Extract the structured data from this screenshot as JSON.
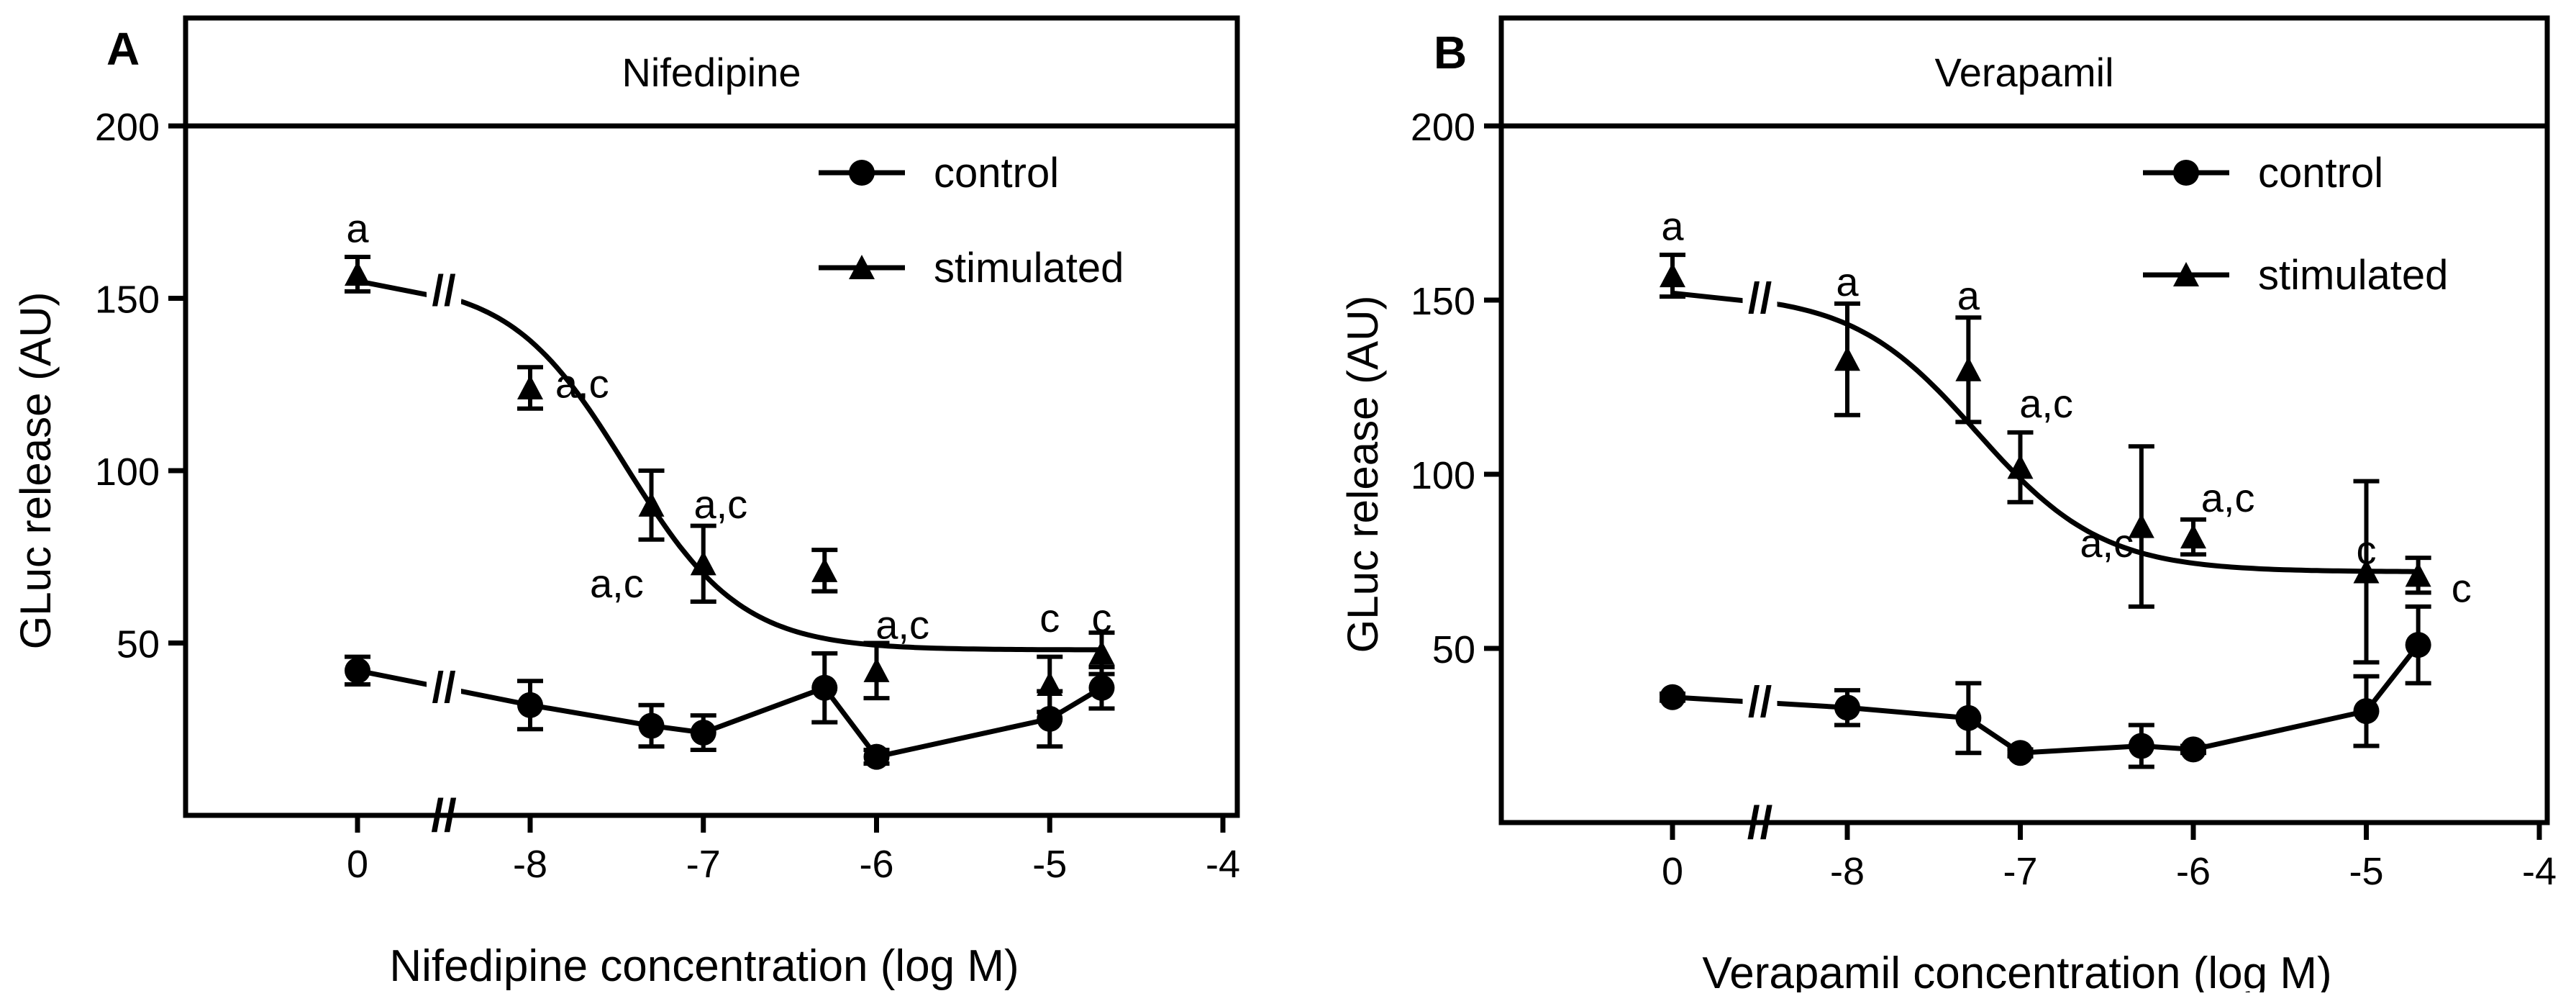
{
  "chart_data": [
    {
      "type": "line",
      "panel_label": "A",
      "header": "Nifedipine",
      "title": "Nifedipine",
      "xlabel": "Nifedipine concentration (log M)",
      "ylabel": "GLuc release (AU)",
      "x_ticks": [
        "0",
        "-8",
        "-7",
        "-6",
        "-5",
        "-4"
      ],
      "x_tick_values": [
        0,
        -8,
        -7,
        -6,
        -5,
        -4
      ],
      "xlim": [
        -9,
        -4
      ],
      "y_ticks": [
        "50",
        "100",
        "150",
        "200"
      ],
      "y_tick_values": [
        50,
        100,
        150,
        200
      ],
      "ylim": [
        0,
        200
      ],
      "axis_break": "//",
      "legend": {
        "position": "top-right",
        "entries": [
          "control",
          "stimulated"
        ]
      },
      "series": [
        {
          "name": "control",
          "marker": "circle",
          "connect": "points",
          "x": [
            0,
            -8,
            -7.3,
            -7,
            -6.3,
            -6,
            -5,
            -4.7
          ],
          "y": [
            42,
            32,
            26,
            24,
            37,
            17,
            28,
            37
          ],
          "err": [
            4,
            7,
            6,
            5,
            10,
            2,
            8,
            6
          ]
        },
        {
          "name": "stimulated",
          "marker": "triangle",
          "connect": "fit",
          "x": [
            0,
            -8,
            -7.3,
            -7,
            -6.3,
            -6,
            -5,
            -4.7
          ],
          "y": [
            157,
            124,
            90,
            73,
            71,
            42,
            38,
            47
          ],
          "err": [
            5,
            6,
            10,
            11,
            6,
            8,
            8,
            6
          ],
          "fit": {
            "bottom": 48,
            "top": 155,
            "logEC50": -7.45,
            "hill": 1.3
          },
          "annotations": [
            {
              "text": "a",
              "x": 0,
              "y": 170
            },
            {
              "text": "a,c",
              "x": -7.7,
              "y": 125
            },
            {
              "text": "a,c",
              "x": -6.9,
              "y": 90
            },
            {
              "text": "a,c",
              "x": -7.5,
              "y": 67
            },
            {
              "text": "a,c",
              "x": -5.85,
              "y": 55
            },
            {
              "text": "c",
              "x": -5,
              "y": 57
            },
            {
              "text": "c",
              "x": -4.7,
              "y": 57
            }
          ]
        }
      ]
    },
    {
      "type": "line",
      "panel_label": "B",
      "header": "Verapamil",
      "title": "Verapamil",
      "xlabel": "Verapamil concentration (log M)",
      "ylabel": "GLuc release (AU)",
      "x_ticks": [
        "0",
        "-8",
        "-7",
        "-6",
        "-5",
        "-4"
      ],
      "x_tick_values": [
        0,
        -8,
        -7,
        -6,
        -5,
        -4
      ],
      "xlim": [
        -9,
        -4
      ],
      "y_ticks": [
        "50",
        "100",
        "150",
        "200"
      ],
      "y_tick_values": [
        50,
        100,
        150,
        200
      ],
      "ylim": [
        0,
        200
      ],
      "axis_break": "//",
      "legend": {
        "position": "top-right",
        "entries": [
          "control",
          "stimulated"
        ]
      },
      "series": [
        {
          "name": "control",
          "marker": "circle",
          "connect": "points",
          "x": [
            0,
            -8,
            -7.3,
            -7,
            -6.3,
            -6,
            -5,
            -4.7
          ],
          "y": [
            36,
            33,
            30,
            20,
            22,
            21,
            32,
            51
          ],
          "err": [
            1,
            5,
            10,
            1,
            6,
            1,
            10,
            11
          ]
        },
        {
          "name": "stimulated",
          "marker": "triangle",
          "connect": "fit",
          "x": [
            0,
            -8,
            -7.3,
            -7,
            -6.3,
            -6,
            -5,
            -4.7
          ],
          "y": [
            157,
            133,
            130,
            102,
            85,
            82,
            72,
            71
          ],
          "err": [
            6,
            16,
            15,
            10,
            23,
            5,
            26,
            5
          ],
          "fit": {
            "bottom": 72,
            "top": 152,
            "logEC50": -7.25,
            "hill": 1.2
          },
          "annotations": [
            {
              "text": "a",
              "x": 0,
              "y": 171
            },
            {
              "text": "a",
              "x": -8,
              "y": 155
            },
            {
              "text": "a",
              "x": -7.3,
              "y": 151
            },
            {
              "text": "a,c",
              "x": -6.85,
              "y": 120
            },
            {
              "text": "a,c",
              "x": -6.5,
              "y": 80
            },
            {
              "text": "a,c",
              "x": -5.8,
              "y": 93
            },
            {
              "text": "c",
              "x": -5,
              "y": 78
            },
            {
              "text": "c",
              "x": -4.45,
              "y": 67
            }
          ]
        }
      ]
    }
  ]
}
